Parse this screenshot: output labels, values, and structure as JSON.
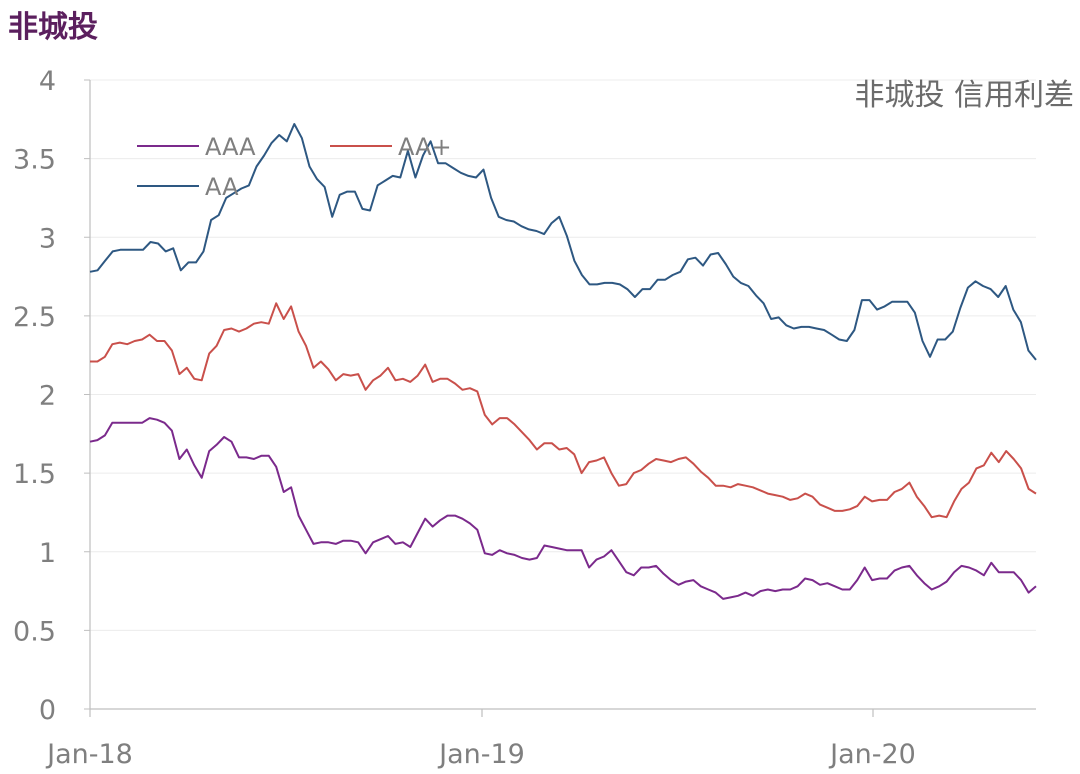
{
  "page": {
    "title": "非城投"
  },
  "chart_data": {
    "type": "line",
    "title": "非城投 信用利差",
    "xlabel": "",
    "ylabel": "",
    "x_start": "2018-01",
    "x_end": "2020-04",
    "x_ticks": [
      "Jan-18",
      "Jan-19",
      "Jan-20"
    ],
    "y_ticks": [
      "0",
      "0.5",
      "1",
      "1.5",
      "2",
      "2.5",
      "3",
      "3.5",
      "4"
    ],
    "ylim": [
      0,
      4
    ],
    "grid": "horizontal",
    "legend_position": "top-left",
    "series": [
      {
        "name": "AAA",
        "color": "#7b2a8c",
        "values": [
          1.7,
          1.71,
          1.74,
          1.82,
          1.82,
          1.82,
          1.82,
          1.82,
          1.85,
          1.84,
          1.82,
          1.77,
          1.59,
          1.65,
          1.55,
          1.47,
          1.64,
          1.68,
          1.73,
          1.7,
          1.6,
          1.6,
          1.59,
          1.61,
          1.61,
          1.54,
          1.38,
          1.41,
          1.23,
          1.14,
          1.05,
          1.06,
          1.06,
          1.05,
          1.07,
          1.07,
          1.06,
          0.99,
          1.06,
          1.08,
          1.1,
          1.05,
          1.06,
          1.03,
          1.12,
          1.21,
          1.16,
          1.2,
          1.23,
          1.23,
          1.21,
          1.18,
          1.14,
          0.99,
          0.98,
          1.01,
          0.99,
          0.98,
          0.96,
          0.95,
          0.96,
          1.04,
          1.03,
          1.02,
          1.01,
          1.01,
          1.01,
          0.9,
          0.95,
          0.97,
          1.01,
          0.94,
          0.87,
          0.85,
          0.9,
          0.9,
          0.91,
          0.86,
          0.82,
          0.79,
          0.81,
          0.82,
          0.78,
          0.76,
          0.74,
          0.7,
          0.71,
          0.72,
          0.74,
          0.72,
          0.75,
          0.76,
          0.75,
          0.76,
          0.76,
          0.78,
          0.83,
          0.82,
          0.79,
          0.8,
          0.78,
          0.76,
          0.76,
          0.82,
          0.9,
          0.82,
          0.83,
          0.83,
          0.88,
          0.9,
          0.91,
          0.85,
          0.8,
          0.76,
          0.78,
          0.81,
          0.87,
          0.91,
          0.9,
          0.88,
          0.85,
          0.93,
          0.87,
          0.87,
          0.87,
          0.82,
          0.74,
          0.78
        ]
      },
      {
        "name": "AA+",
        "color": "#c9504b",
        "values": [
          2.21,
          2.21,
          2.24,
          2.32,
          2.33,
          2.32,
          2.34,
          2.35,
          2.38,
          2.34,
          2.34,
          2.28,
          2.13,
          2.17,
          2.1,
          2.09,
          2.26,
          2.31,
          2.41,
          2.42,
          2.4,
          2.42,
          2.45,
          2.46,
          2.45,
          2.58,
          2.48,
          2.56,
          2.4,
          2.31,
          2.17,
          2.21,
          2.16,
          2.09,
          2.13,
          2.12,
          2.13,
          2.03,
          2.09,
          2.12,
          2.17,
          2.09,
          2.1,
          2.08,
          2.12,
          2.19,
          2.08,
          2.1,
          2.1,
          2.07,
          2.03,
          2.04,
          2.02,
          1.87,
          1.81,
          1.85,
          1.85,
          1.81,
          1.76,
          1.71,
          1.65,
          1.69,
          1.69,
          1.65,
          1.66,
          1.62,
          1.5,
          1.57,
          1.58,
          1.6,
          1.5,
          1.42,
          1.43,
          1.5,
          1.52,
          1.56,
          1.59,
          1.58,
          1.57,
          1.59,
          1.6,
          1.56,
          1.51,
          1.47,
          1.42,
          1.42,
          1.41,
          1.43,
          1.42,
          1.41,
          1.39,
          1.37,
          1.36,
          1.35,
          1.33,
          1.34,
          1.37,
          1.35,
          1.3,
          1.28,
          1.26,
          1.26,
          1.27,
          1.29,
          1.35,
          1.32,
          1.33,
          1.33,
          1.38,
          1.4,
          1.44,
          1.35,
          1.29,
          1.22,
          1.23,
          1.22,
          1.32,
          1.4,
          1.44,
          1.53,
          1.55,
          1.63,
          1.57,
          1.64,
          1.59,
          1.53,
          1.4,
          1.37
        ]
      },
      {
        "name": "AA",
        "color": "#2e5882",
        "values": [
          2.78,
          2.79,
          2.85,
          2.91,
          2.92,
          2.92,
          2.92,
          2.92,
          2.97,
          2.96,
          2.91,
          2.93,
          2.79,
          2.84,
          2.84,
          2.91,
          3.11,
          3.14,
          3.25,
          3.28,
          3.31,
          3.33,
          3.45,
          3.52,
          3.6,
          3.65,
          3.61,
          3.72,
          3.63,
          3.45,
          3.37,
          3.32,
          3.13,
          3.27,
          3.29,
          3.29,
          3.18,
          3.17,
          3.33,
          3.36,
          3.39,
          3.38,
          3.55,
          3.38,
          3.52,
          3.61,
          3.47,
          3.47,
          3.44,
          3.41,
          3.39,
          3.38,
          3.43,
          3.25,
          3.13,
          3.11,
          3.1,
          3.07,
          3.05,
          3.04,
          3.02,
          3.09,
          3.13,
          3.01,
          2.85,
          2.76,
          2.7,
          2.7,
          2.71,
          2.71,
          2.7,
          2.67,
          2.62,
          2.67,
          2.67,
          2.73,
          2.73,
          2.76,
          2.78,
          2.86,
          2.87,
          2.82,
          2.89,
          2.9,
          2.83,
          2.75,
          2.71,
          2.69,
          2.63,
          2.58,
          2.48,
          2.49,
          2.44,
          2.42,
          2.43,
          2.43,
          2.42,
          2.41,
          2.38,
          2.35,
          2.34,
          2.41,
          2.6,
          2.6,
          2.54,
          2.56,
          2.59,
          2.59,
          2.59,
          2.52,
          2.34,
          2.24,
          2.35,
          2.35,
          2.4,
          2.55,
          2.68,
          2.72,
          2.69,
          2.67,
          2.62,
          2.69,
          2.54,
          2.46,
          2.28,
          2.22
        ]
      }
    ]
  }
}
